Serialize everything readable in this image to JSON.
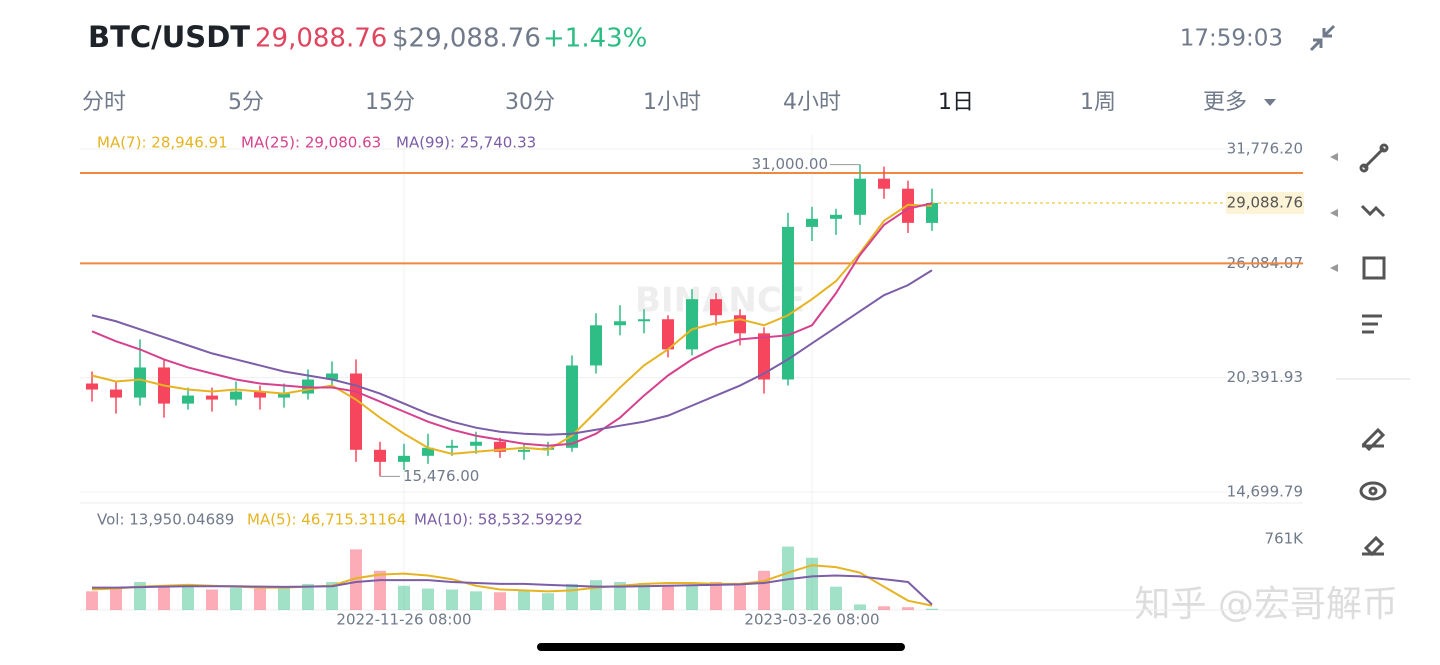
{
  "header": {
    "pair": "BTC/USDT",
    "price": "29,088.76",
    "usd_price": "$29,088.76",
    "change": "+1.43%",
    "time": "17:59:03"
  },
  "tabs": [
    {
      "label": "分时",
      "active": false
    },
    {
      "label": "5分",
      "active": false
    },
    {
      "label": "15分",
      "active": false
    },
    {
      "label": "30分",
      "active": false
    },
    {
      "label": "1小时",
      "active": false
    },
    {
      "label": "4小时",
      "active": false
    },
    {
      "label": "1日",
      "active": true
    },
    {
      "label": "1周",
      "active": false
    },
    {
      "label": "更多",
      "active": false
    }
  ],
  "chart_data": {
    "type": "candlestick",
    "categories": [
      null,
      null,
      null,
      null,
      null,
      null,
      null,
      null,
      null,
      null,
      null,
      null,
      null,
      "2022-11-26 08:00",
      null,
      null,
      null,
      null,
      null,
      null,
      null,
      null,
      null,
      null,
      null,
      null,
      null,
      null,
      null,
      null,
      "2023-03-26 08:00",
      null,
      null,
      null,
      null,
      null
    ],
    "open": [
      20100,
      19800,
      19400,
      20900,
      19100,
      19500,
      19300,
      19700,
      19400,
      19600,
      20300,
      20600,
      16800,
      16200,
      16500,
      16900,
      17000,
      17200,
      16700,
      16800,
      16900,
      21000,
      23000,
      23200,
      23300,
      21800,
      24300,
      23500,
      22600,
      20300,
      27900,
      28300,
      28500,
      30300,
      29800,
      28100
    ],
    "high": [
      20700,
      20200,
      22300,
      21300,
      19900,
      19900,
      20200,
      20000,
      20100,
      20800,
      21200,
      21300,
      17200,
      17100,
      17600,
      17300,
      17700,
      17400,
      17100,
      17200,
      21500,
      23600,
      24000,
      23800,
      23500,
      24800,
      24600,
      23800,
      22900,
      28600,
      28900,
      28800,
      31000,
      30900,
      30200,
      29800
    ],
    "low": [
      19200,
      18600,
      19000,
      18400,
      18800,
      18700,
      19000,
      18800,
      18900,
      19300,
      19900,
      16200,
      15476,
      15800,
      16100,
      16500,
      16600,
      16400,
      16300,
      16500,
      16700,
      20600,
      22500,
      22600,
      21400,
      21500,
      23000,
      22000,
      19600,
      20000,
      27200,
      27500,
      28000,
      29300,
      27600,
      27700
    ],
    "close": [
      19800,
      19400,
      20900,
      19100,
      19500,
      19300,
      19700,
      19400,
      19600,
      20300,
      20600,
      16800,
      16200,
      16500,
      16900,
      17000,
      17200,
      16700,
      16800,
      16900,
      21000,
      23000,
      23200,
      23300,
      21800,
      24300,
      23500,
      22600,
      20300,
      27900,
      28300,
      28500,
      30300,
      29800,
      28100,
      29088.76
    ],
    "up_color": "#2ebd85",
    "down_color": "#f6465d",
    "ylim": [
      14300,
      32475
    ],
    "yticks": [
      {
        "value": 31776.2,
        "label": "31,776.20"
      },
      {
        "value": 26084.07,
        "label": "26,084.07"
      },
      {
        "value": 20391.93,
        "label": "20,391.93"
      },
      {
        "value": 14699.79,
        "label": "14,699.79"
      }
    ],
    "hlines": [
      30580,
      26084.07
    ],
    "hline_color": "#f0883e",
    "high_label": {
      "value": 31000,
      "label": "31,000.00"
    },
    "low_label": {
      "value": 15476,
      "label": "15,476.00"
    },
    "last_price": {
      "value": 29088.76,
      "label": "29,088.76"
    },
    "series": [
      {
        "name": "MA(7): 28,946.91",
        "color": "#e6b422",
        "values": [
          20500,
          20200,
          20300,
          20000,
          19800,
          19700,
          19800,
          19700,
          19600,
          19800,
          20000,
          19300,
          18400,
          17600,
          16900,
          16600,
          16700,
          16800,
          16900,
          16800,
          17500,
          18700,
          19900,
          21000,
          21800,
          22800,
          23100,
          23300,
          23000,
          23500,
          24300,
          25200,
          26600,
          28200,
          29000,
          28946.91
        ]
      },
      {
        "name": "MA(25): 29,080.63",
        "color": "#d6418e",
        "values": [
          22700,
          22200,
          21800,
          21300,
          20900,
          20600,
          20300,
          20100,
          20000,
          19900,
          19900,
          19700,
          19200,
          18700,
          18200,
          17800,
          17500,
          17300,
          17100,
          17000,
          17100,
          17600,
          18400,
          19500,
          20500,
          21300,
          21900,
          22300,
          22400,
          22500,
          23000,
          24600,
          26500,
          28000,
          28800,
          29080.63
        ]
      },
      {
        "name": "MA(99): 25,740.33",
        "color": "#7b5ea7",
        "values": [
          23500,
          23200,
          22800,
          22400,
          22000,
          21600,
          21300,
          21000,
          20700,
          20500,
          20300,
          20000,
          19600,
          19100,
          18600,
          18200,
          17900,
          17700,
          17600,
          17550,
          17600,
          17800,
          18000,
          18200,
          18500,
          19000,
          19500,
          20000,
          20600,
          21300,
          22100,
          22900,
          23700,
          24500,
          25000,
          25740.33
        ]
      }
    ],
    "volume": {
      "title": "Vol: 13,950.04689",
      "values": [
        200000,
        230000,
        300000,
        260000,
        280000,
        220000,
        240000,
        230000,
        250000,
        280000,
        300000,
        650000,
        420000,
        260000,
        230000,
        220000,
        200000,
        190000,
        210000,
        180000,
        280000,
        320000,
        300000,
        290000,
        270000,
        260000,
        300000,
        280000,
        420000,
        680000,
        560000,
        250000,
        60000,
        40000,
        30000,
        13950.04689
      ],
      "ylim": [
        0,
        1072000
      ],
      "yticks": [
        {
          "value": 761000,
          "label": "761K"
        }
      ],
      "series": [
        {
          "name": "MA(5): 46,715.31164",
          "color": "#e6b422",
          "values": [
            220000,
            230000,
            250000,
            260000,
            270000,
            260000,
            250000,
            240000,
            240000,
            250000,
            260000,
            340000,
            380000,
            390000,
            370000,
            330000,
            260000,
            220000,
            210000,
            200000,
            210000,
            240000,
            260000,
            280000,
            290000,
            290000,
            280000,
            280000,
            310000,
            400000,
            480000,
            460000,
            400000,
            250000,
            100000,
            46715.31164
          ]
        },
        {
          "name": "MA(10): 58,532.59292",
          "color": "#7b5ea7",
          "values": [
            240000,
            240000,
            245000,
            250000,
            255000,
            255000,
            255000,
            250000,
            248000,
            250000,
            255000,
            300000,
            320000,
            320000,
            320000,
            300000,
            290000,
            280000,
            280000,
            270000,
            260000,
            250000,
            250000,
            255000,
            260000,
            265000,
            270000,
            275000,
            290000,
            330000,
            360000,
            370000,
            360000,
            330000,
            300000,
            58532.59292
          ]
        }
      ]
    }
  },
  "watermark": "知乎 @宏哥解币"
}
